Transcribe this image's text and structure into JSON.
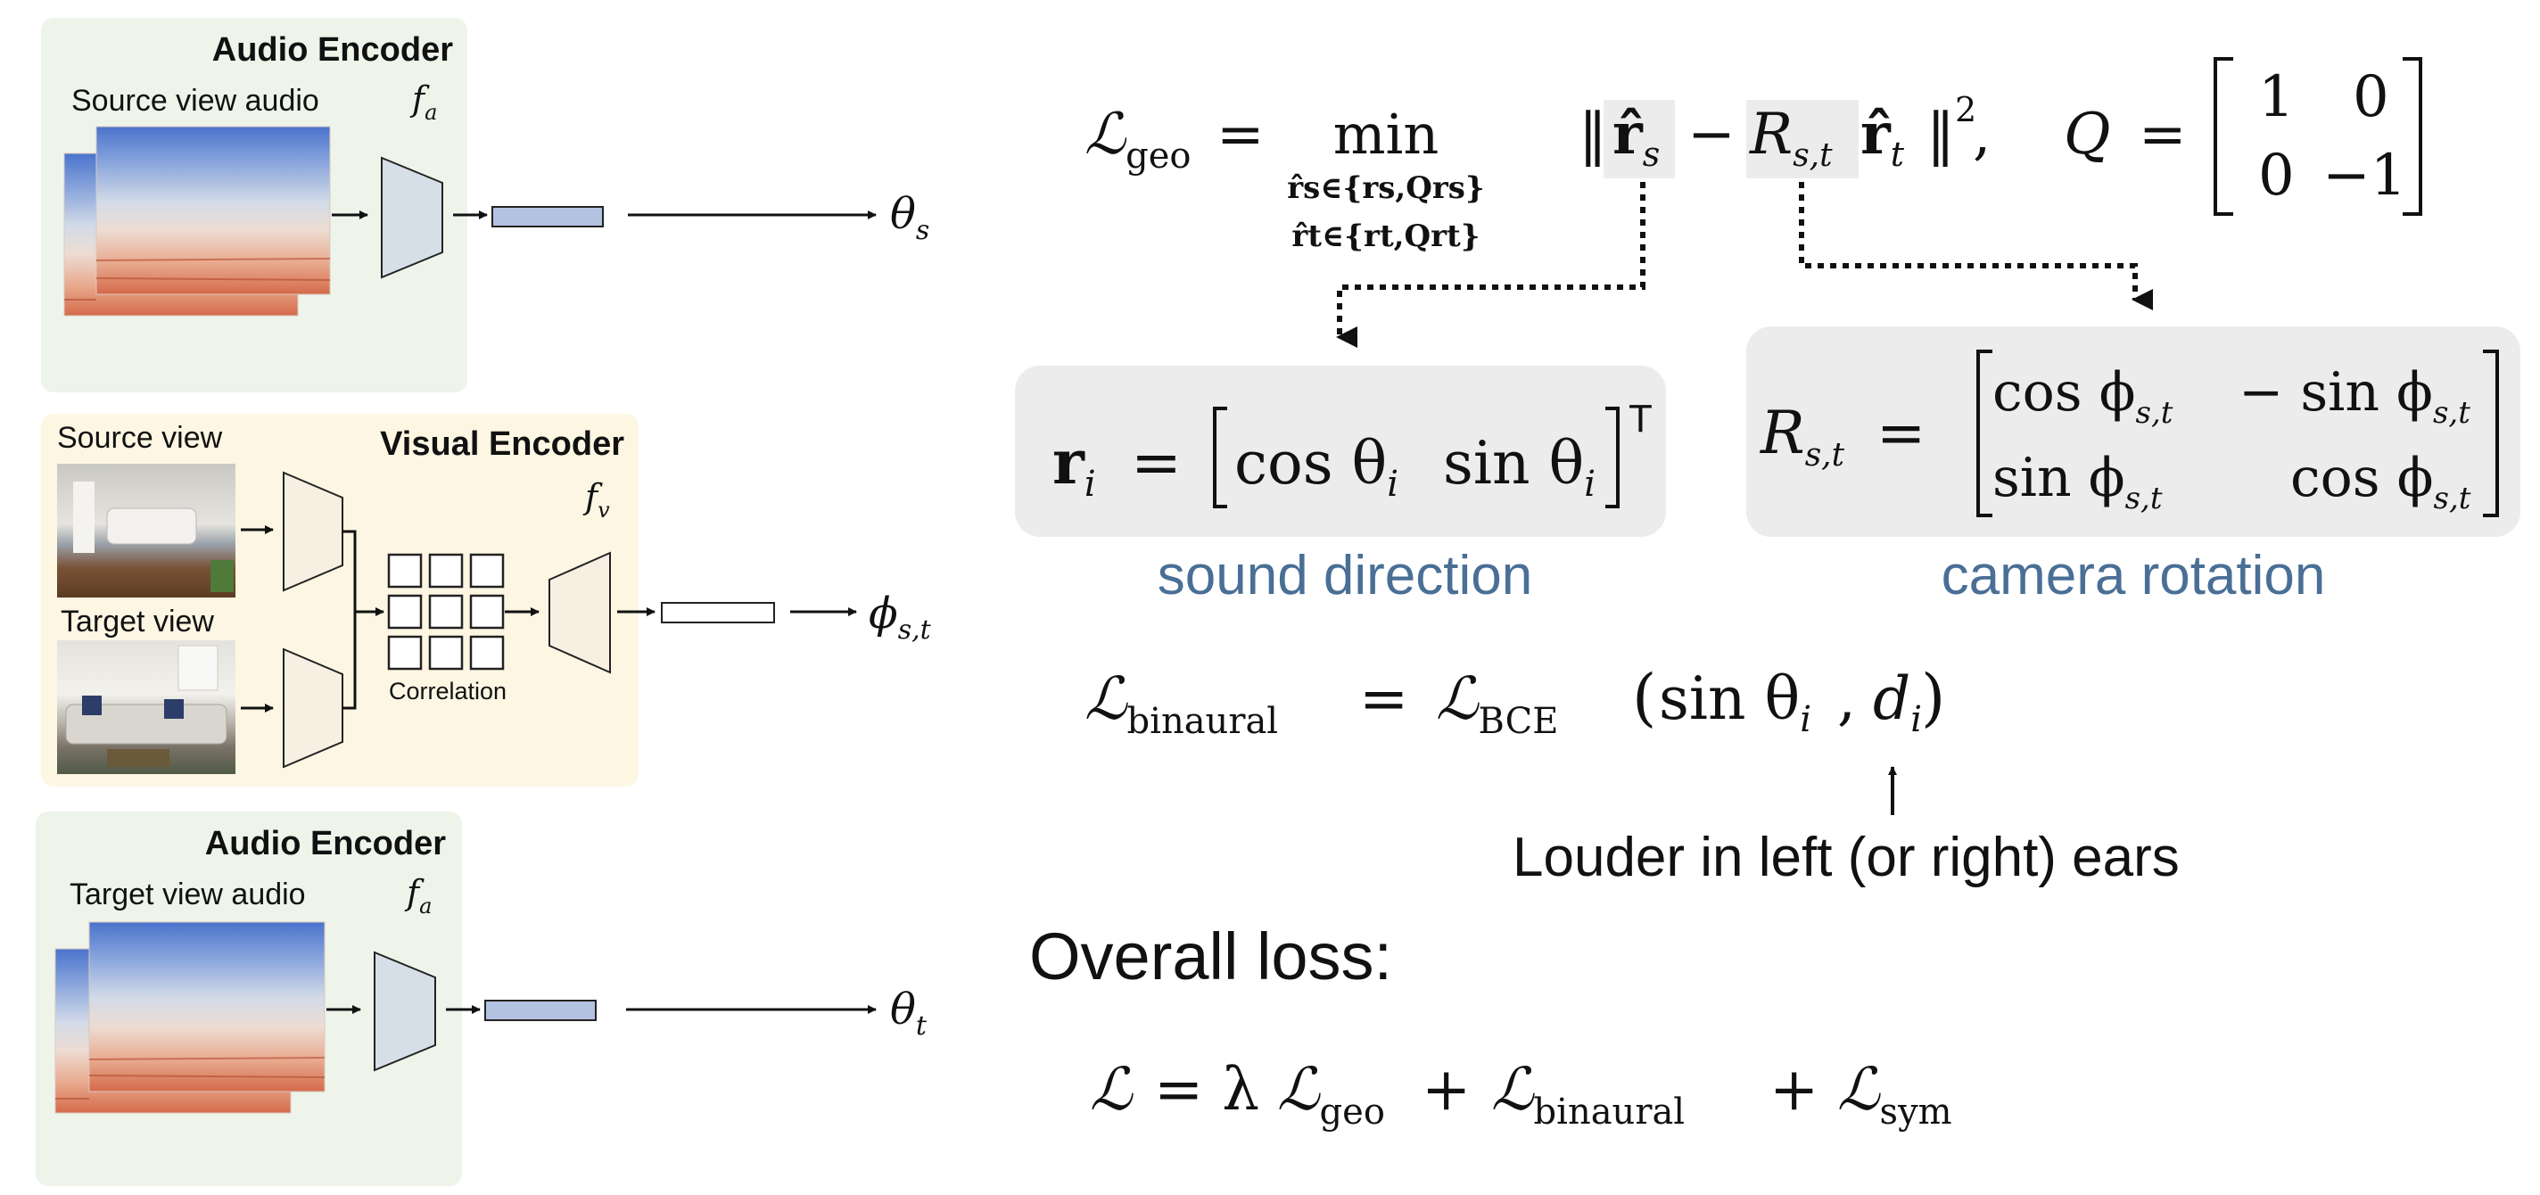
{
  "colors": {
    "audio_panel": "#eef4ea",
    "visual_panel": "#fcf6e3",
    "encoder_fill": "#d6dfe8",
    "visual_encoder_fill": "#f7efe2",
    "feature_bar": "#b4c2e2",
    "formula_box": "#ececec",
    "caption_blue": "#4a6f96"
  },
  "audio_encoder_top": {
    "title": "Audio Encoder",
    "input_label": "Source view audio",
    "encoder_symbol": "f",
    "encoder_symbol_sub": "a",
    "output": "θ",
    "output_sub": "s",
    "icon": "spectrogram-image"
  },
  "visual_encoder": {
    "title": "Visual Encoder",
    "source_label": "Source view",
    "target_label": "Target view",
    "encoder_symbol": "f",
    "encoder_symbol_sub": "v",
    "correlation_label": "Correlation",
    "output": "ϕ",
    "output_sub": "s,t",
    "icon": "room-photo"
  },
  "audio_encoder_bottom": {
    "title": "Audio Encoder",
    "input_label": "Target view audio",
    "encoder_symbol": "f",
    "encoder_symbol_sub": "a",
    "output": "θ",
    "output_sub": "t",
    "icon": "spectrogram-image"
  },
  "formulas": {
    "geo": {
      "lhs": "ℒ",
      "lhs_sub": "geo",
      "eq": "=",
      "min": "min",
      "min_cond_1": "r̂s∈{rs,Qrs}",
      "min_cond_2": "r̂t∈{rt,Qrt}",
      "norm_open": "‖",
      "r_hat_s": "r̂",
      "r_hat_s_sub": "s",
      "minus": "−",
      "R": "R",
      "R_sub": "s,t",
      "r_hat_t": "r̂",
      "r_hat_t_sub": "t",
      "norm_close": "‖",
      "power": "2",
      "comma": ",",
      "Q_lhs": "Q",
      "Q_eq": "=",
      "Q_matrix": [
        [
          "1",
          "0"
        ],
        [
          "0",
          "−1"
        ]
      ]
    },
    "sound_direction": {
      "lhs": "r",
      "lhs_sub": "i",
      "eq": "=",
      "entries": [
        "cos θ",
        "sin θ"
      ],
      "entry_sub": "i",
      "transpose": "T",
      "caption": "sound direction"
    },
    "camera_rotation": {
      "lhs": "R",
      "lhs_sub": "s,t",
      "eq": "=",
      "matrix": [
        [
          "cos ϕ",
          "− sin ϕ"
        ],
        [
          "sin ϕ",
          "cos ϕ"
        ]
      ],
      "entry_sub": "s,t",
      "caption": "camera rotation"
    },
    "binaural": {
      "lhs": "ℒ",
      "lhs_sub": "binaural",
      "eq": "=",
      "rhs": "ℒ",
      "rhs_sub": "BCE",
      "open_paren": "(",
      "arg1": "sin θ",
      "arg1_sub": "i",
      "comma": ",",
      "arg2": "d",
      "arg2_sub": "i",
      "close_paren": ")",
      "note": "Louder in left (or right) ears"
    },
    "overall": {
      "heading": "Overall loss:",
      "lhs": "ℒ",
      "eq": "= λ",
      "t1": "ℒ",
      "t1_sub": "geo",
      "plus1": "+",
      "t2": "ℒ",
      "t2_sub": "binaural",
      "plus2": "+",
      "t3": "ℒ",
      "t3_sub": "sym"
    }
  }
}
